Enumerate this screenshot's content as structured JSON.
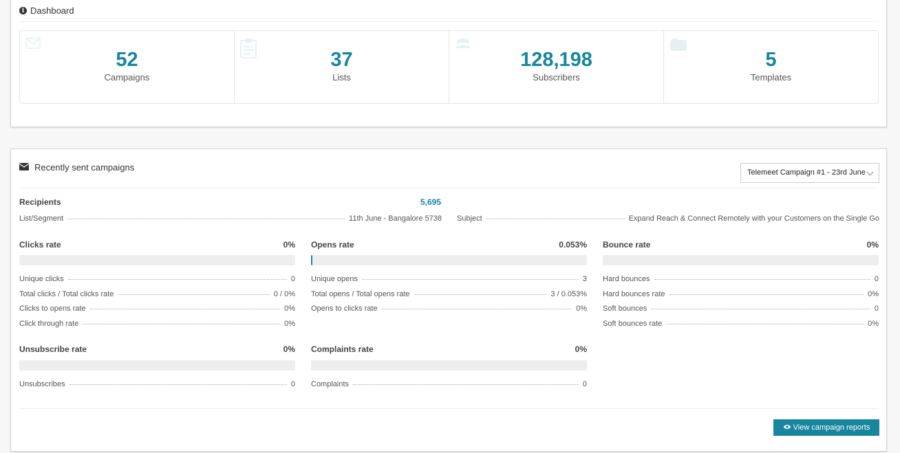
{
  "dashboard": {
    "title": "Dashboard",
    "stats": [
      {
        "value": "52",
        "label": "Campaigns",
        "icon": "envelope-icon"
      },
      {
        "value": "37",
        "label": "Lists",
        "icon": "clipboard-icon"
      },
      {
        "value": "128,198",
        "label": "Subscribers",
        "icon": "users-icon"
      },
      {
        "value": "5",
        "label": "Templates",
        "icon": "template-icon"
      }
    ]
  },
  "campaigns": {
    "title": "Recently sent campaigns",
    "selected_campaign": "Telemeet Campaign #1 - 23rd June",
    "recipients_label": "Recipients",
    "recipients_value": "5,695",
    "list_segment_label": "List/Segment",
    "list_segment_value": "11th June - Bangalore 5738",
    "subject_label": "Subject",
    "subject_value": "Expand Reach & Connect Remotely with your Customers on the Single Go",
    "clicks": {
      "title": "Clicks rate",
      "rate": "0%",
      "fill_percent": 0,
      "rows": [
        {
          "label": "Unique clicks",
          "value": "0"
        },
        {
          "label": "Total clicks / Total clicks rate",
          "value": "0 / 0%"
        },
        {
          "label": "Clicks to opens rate",
          "value": "0%"
        },
        {
          "label": "Click through rate",
          "value": "0%"
        }
      ]
    },
    "opens": {
      "title": "Opens rate",
      "rate": "0.053%",
      "fill_percent": 0.053,
      "rows": [
        {
          "label": "Unique opens",
          "value": "3"
        },
        {
          "label": "Total opens / Total opens rate",
          "value": "3 / 0.053%"
        },
        {
          "label": "Opens to clicks rate",
          "value": "0%"
        }
      ]
    },
    "bounce": {
      "title": "Bounce rate",
      "rate": "0%",
      "fill_percent": 0,
      "rows": [
        {
          "label": "Hard bounces",
          "value": "0"
        },
        {
          "label": "Hard bounces rate",
          "value": "0%"
        },
        {
          "label": "Soft bounces",
          "value": "0"
        },
        {
          "label": "Soft bounces rate",
          "value": "0%"
        }
      ]
    },
    "unsubscribe": {
      "title": "Unsubscribe rate",
      "rate": "0%",
      "fill_percent": 0,
      "rows": [
        {
          "label": "Unsubscribes",
          "value": "0"
        }
      ]
    },
    "complaints": {
      "title": "Complaints rate",
      "rate": "0%",
      "fill_percent": 0,
      "rows": [
        {
          "label": "Complaints",
          "value": "0"
        }
      ]
    },
    "view_reports_label": "View campaign reports"
  },
  "colors": {
    "accent": "#17869e",
    "bar_bg": "#eeeeee"
  }
}
